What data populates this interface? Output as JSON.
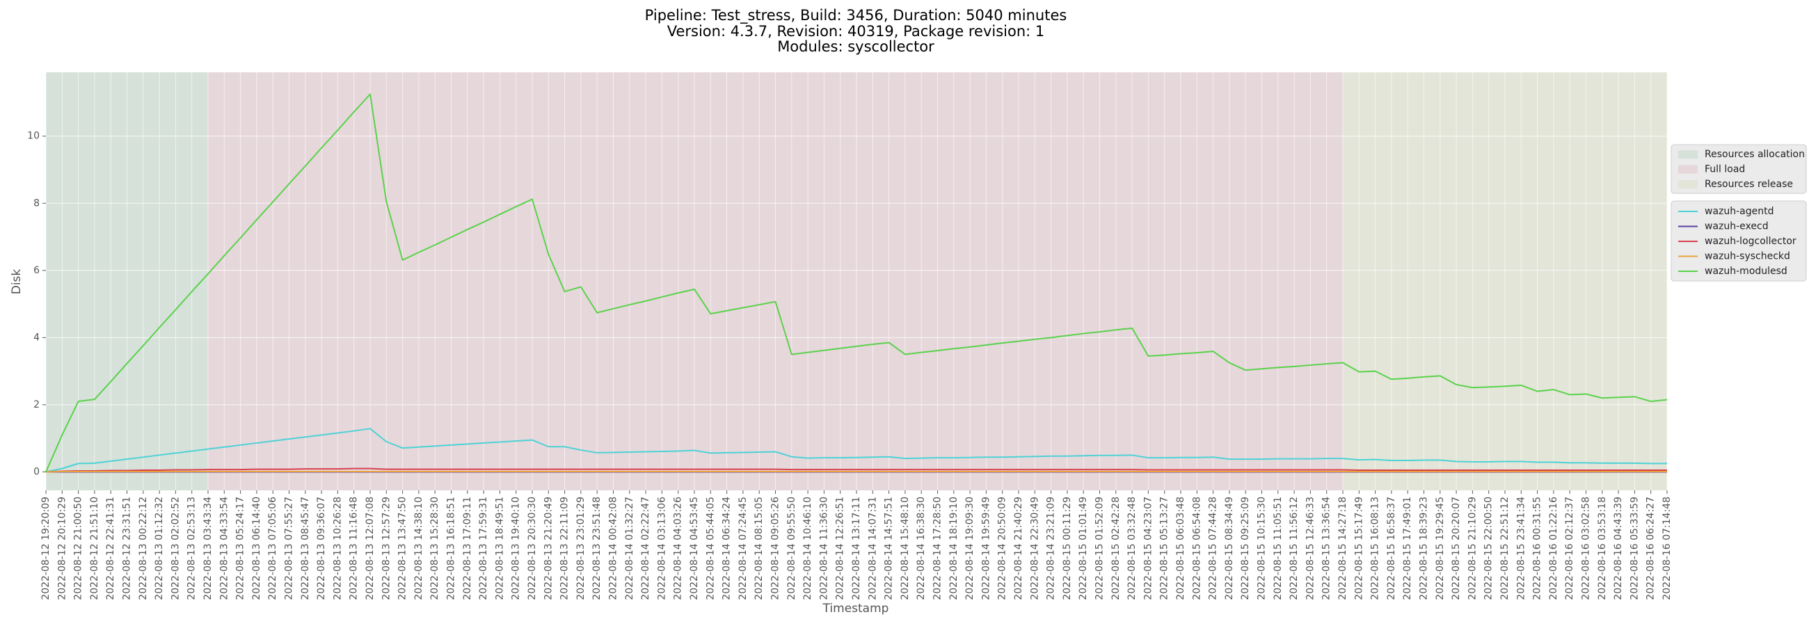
{
  "chart_data": {
    "type": "line",
    "title": [
      "Pipeline: Test_stress, Build: 3456, Duration: 5040 minutes",
      "Version: 4.3.7, Revision: 40319, Package revision: 1",
      "Modules: syscollector"
    ],
    "xlabel": "Timestamp",
    "ylabel": "Disk",
    "categories": [
      "2022-08-12 19:20:09",
      "2022-08-12 20:10:29",
      "2022-08-12 21:00:50",
      "2022-08-12 21:51:10",
      "2022-08-12 22:41:31",
      "2022-08-12 23:31:51",
      "2022-08-13 00:22:12",
      "2022-08-13 01:12:32",
      "2022-08-13 02:02:52",
      "2022-08-13 02:53:13",
      "2022-08-13 03:43:34",
      "2022-08-13 04:33:54",
      "2022-08-13 05:24:17",
      "2022-08-13 06:14:40",
      "2022-08-13 07:05:06",
      "2022-08-13 07:55:27",
      "2022-08-13 08:45:47",
      "2022-08-13 09:36:07",
      "2022-08-13 10:26:28",
      "2022-08-13 11:16:48",
      "2022-08-13 12:07:08",
      "2022-08-13 12:57:29",
      "2022-08-13 13:47:50",
      "2022-08-13 14:38:10",
      "2022-08-13 15:28:30",
      "2022-08-13 16:18:51",
      "2022-08-13 17:09:11",
      "2022-08-13 17:59:31",
      "2022-08-13 18:49:51",
      "2022-08-13 19:40:10",
      "2022-08-13 20:30:30",
      "2022-08-13 21:20:49",
      "2022-08-13 22:11:09",
      "2022-08-13 23:01:29",
      "2022-08-13 23:51:48",
      "2022-08-14 00:42:08",
      "2022-08-14 01:32:27",
      "2022-08-14 02:22:47",
      "2022-08-14 03:13:06",
      "2022-08-14 04:03:26",
      "2022-08-14 04:53:45",
      "2022-08-14 05:44:05",
      "2022-08-14 06:34:24",
      "2022-08-14 07:24:45",
      "2022-08-14 08:15:05",
      "2022-08-14 09:05:26",
      "2022-08-14 09:55:50",
      "2022-08-14 10:46:10",
      "2022-08-14 11:36:30",
      "2022-08-14 12:26:51",
      "2022-08-14 13:17:11",
      "2022-08-14 14:07:31",
      "2022-08-14 14:57:51",
      "2022-08-14 15:48:10",
      "2022-08-14 16:38:30",
      "2022-08-14 17:28:50",
      "2022-08-14 18:19:10",
      "2022-08-14 19:09:30",
      "2022-08-14 19:59:49",
      "2022-08-14 20:50:09",
      "2022-08-14 21:40:29",
      "2022-08-14 22:30:49",
      "2022-08-14 23:21:09",
      "2022-08-15 00:11:29",
      "2022-08-15 01:01:49",
      "2022-08-15 01:52:09",
      "2022-08-15 02:42:28",
      "2022-08-15 03:32:48",
      "2022-08-15 04:23:07",
      "2022-08-15 05:13:27",
      "2022-08-15 06:03:48",
      "2022-08-15 06:54:08",
      "2022-08-15 07:44:28",
      "2022-08-15 08:34:49",
      "2022-08-15 09:25:09",
      "2022-08-15 10:15:30",
      "2022-08-15 11:05:51",
      "2022-08-15 11:56:12",
      "2022-08-15 12:46:33",
      "2022-08-15 13:36:54",
      "2022-08-15 14:27:18",
      "2022-08-15 15:17:49",
      "2022-08-15 16:08:13",
      "2022-08-15 16:58:37",
      "2022-08-15 17:49:01",
      "2022-08-15 18:39:23",
      "2022-08-15 19:29:45",
      "2022-08-15 20:20:07",
      "2022-08-15 21:10:29",
      "2022-08-15 22:00:50",
      "2022-08-15 22:51:12",
      "2022-08-15 23:41:34",
      "2022-08-16 00:31:55",
      "2022-08-16 01:22:16",
      "2022-08-16 02:12:37",
      "2022-08-16 03:02:58",
      "2022-08-16 03:53:18",
      "2022-08-16 04:43:39",
      "2022-08-16 05:33:59",
      "2022-08-16 06:24:27",
      "2022-08-16 07:14:48"
    ],
    "phases": [
      {
        "name": "Resources allocation",
        "color": "#d6e1da",
        "span": [
          0,
          10
        ]
      },
      {
        "name": "Full load",
        "color": "#e6d7db",
        "span": [
          10,
          80
        ]
      },
      {
        "name": "Resources release",
        "color": "#e3e5d8",
        "span": [
          80,
          100
        ]
      }
    ],
    "series": [
      {
        "name": "wazuh-agentd",
        "color": "#4dd2d6",
        "values": [
          0,
          0.1,
          0.25,
          0.26,
          0.32,
          0.38,
          0.44,
          0.5,
          0.56,
          0.62,
          0.68,
          0.74,
          0.8,
          0.86,
          0.92,
          0.98,
          1.04,
          1.1,
          1.16,
          1.22,
          1.29,
          0.9,
          0.71,
          0.74,
          0.77,
          0.8,
          0.83,
          0.86,
          0.89,
          0.92,
          0.95,
          0.75,
          0.75,
          0.65,
          0.57,
          0.58,
          0.59,
          0.6,
          0.61,
          0.62,
          0.64,
          0.56,
          0.57,
          0.58,
          0.59,
          0.6,
          0.45,
          0.41,
          0.42,
          0.42,
          0.43,
          0.44,
          0.45,
          0.4,
          0.41,
          0.42,
          0.42,
          0.43,
          0.44,
          0.44,
          0.45,
          0.46,
          0.47,
          0.47,
          0.48,
          0.49,
          0.49,
          0.5,
          0.42,
          0.42,
          0.43,
          0.43,
          0.44,
          0.38,
          0.38,
          0.38,
          0.39,
          0.39,
          0.39,
          0.4,
          0.4,
          0.36,
          0.37,
          0.34,
          0.34,
          0.35,
          0.35,
          0.31,
          0.3,
          0.3,
          0.31,
          0.31,
          0.29,
          0.29,
          0.27,
          0.27,
          0.26,
          0.26,
          0.26,
          0.25,
          0.25
        ]
      },
      {
        "name": "wazuh-execd",
        "color": "#5a3ea6",
        "values": [
          0,
          0,
          0,
          0,
          0,
          0,
          0,
          0,
          0,
          0,
          0,
          0,
          0,
          0,
          0,
          0,
          0,
          0,
          0,
          0,
          0,
          0,
          0,
          0,
          0,
          0,
          0,
          0,
          0,
          0,
          0,
          0,
          0,
          0,
          0,
          0,
          0,
          0,
          0,
          0,
          0,
          0,
          0,
          0,
          0,
          0,
          0,
          0,
          0,
          0,
          0,
          0,
          0,
          0,
          0,
          0,
          0,
          0,
          0,
          0,
          0,
          0,
          0,
          0,
          0,
          0,
          0,
          0,
          0,
          0,
          0,
          0,
          0,
          0,
          0,
          0,
          0,
          0,
          0,
          0,
          0,
          0,
          0,
          0,
          0,
          0,
          0,
          0,
          0,
          0,
          0,
          0,
          0,
          0,
          0,
          0,
          0,
          0,
          0,
          0,
          0
        ]
      },
      {
        "name": "wazuh-logcollector",
        "color": "#d8404e",
        "values": [
          0,
          0.02,
          0.03,
          0.03,
          0.04,
          0.04,
          0.05,
          0.05,
          0.06,
          0.06,
          0.07,
          0.07,
          0.07,
          0.08,
          0.08,
          0.08,
          0.09,
          0.09,
          0.09,
          0.1,
          0.1,
          0.08,
          0.08,
          0.08,
          0.08,
          0.08,
          0.08,
          0.08,
          0.08,
          0.08,
          0.08,
          0.08,
          0.08,
          0.08,
          0.08,
          0.08,
          0.08,
          0.08,
          0.08,
          0.08,
          0.08,
          0.08,
          0.08,
          0.08,
          0.08,
          0.08,
          0.07,
          0.07,
          0.07,
          0.07,
          0.07,
          0.07,
          0.07,
          0.07,
          0.07,
          0.07,
          0.07,
          0.07,
          0.07,
          0.07,
          0.07,
          0.07,
          0.07,
          0.07,
          0.07,
          0.07,
          0.07,
          0.07,
          0.06,
          0.06,
          0.06,
          0.06,
          0.06,
          0.06,
          0.06,
          0.06,
          0.06,
          0.06,
          0.06,
          0.06,
          0.06,
          0.05,
          0.05,
          0.05,
          0.05,
          0.05,
          0.05,
          0.05,
          0.05,
          0.05,
          0.05,
          0.05,
          0.05,
          0.05,
          0.05,
          0.05,
          0.05,
          0.05,
          0.05,
          0.05,
          0.05
        ]
      },
      {
        "name": "wazuh-syscheckd",
        "color": "#e9a13b",
        "values": [
          0,
          0.01,
          0.01,
          0.01,
          0.01,
          0.01,
          0.01,
          0.01,
          0.01,
          0.01,
          0.01,
          0.01,
          0.01,
          0.01,
          0.01,
          0.01,
          0.01,
          0.01,
          0.01,
          0.01,
          0.01,
          0.01,
          0.01,
          0.01,
          0.01,
          0.01,
          0.01,
          0.01,
          0.01,
          0.01,
          0.01,
          0.01,
          0.01,
          0.01,
          0.01,
          0.01,
          0.01,
          0.01,
          0.01,
          0.01,
          0.01,
          0.01,
          0.01,
          0.01,
          0.01,
          0.01,
          0.01,
          0.01,
          0.01,
          0.01,
          0.01,
          0.01,
          0.01,
          0.01,
          0.01,
          0.01,
          0.01,
          0.01,
          0.01,
          0.01,
          0.01,
          0.01,
          0.01,
          0.01,
          0.01,
          0.01,
          0.01,
          0.01,
          0.01,
          0.01,
          0.01,
          0.01,
          0.01,
          0.01,
          0.01,
          0.01,
          0.01,
          0.01,
          0.01,
          0.01,
          0.01,
          0.01,
          0.01,
          0.01,
          0.01,
          0.01,
          0.01,
          0.01,
          0.01,
          0.01,
          0.01,
          0.01,
          0.01,
          0.01,
          0.01,
          0.01,
          0.01,
          0.01,
          0.01,
          0.01,
          0.01
        ]
      },
      {
        "name": "wazuh-modulesd",
        "color": "#5ad24a",
        "values": [
          0,
          1.1,
          2.1,
          2.16,
          2.69,
          3.23,
          3.76,
          4.3,
          4.83,
          5.37,
          5.9,
          6.44,
          6.97,
          7.51,
          8.04,
          8.58,
          9.11,
          9.65,
          10.18,
          10.72,
          11.25,
          8.05,
          6.31,
          6.54,
          6.76,
          6.99,
          7.22,
          7.44,
          7.67,
          7.9,
          8.12,
          6.48,
          5.37,
          5.51,
          4.74,
          4.86,
          4.98,
          5.09,
          5.21,
          5.33,
          5.44,
          4.71,
          4.8,
          4.89,
          4.98,
          5.07,
          3.5,
          3.56,
          3.62,
          3.68,
          3.74,
          3.8,
          3.85,
          3.5,
          3.56,
          3.61,
          3.67,
          3.72,
          3.78,
          3.84,
          3.89,
          3.95,
          4.0,
          4.06,
          4.12,
          4.17,
          4.23,
          4.28,
          3.45,
          3.48,
          3.52,
          3.55,
          3.59,
          3.25,
          3.03,
          3.07,
          3.11,
          3.14,
          3.18,
          3.22,
          3.25,
          2.98,
          3.0,
          2.76,
          2.79,
          2.83,
          2.86,
          2.6,
          2.51,
          2.53,
          2.55,
          2.58,
          2.4,
          2.45,
          2.3,
          2.32,
          2.2,
          2.22,
          2.24,
          2.1,
          2.15
        ]
      }
    ],
    "ylim": [
      -0.55,
      11.9
    ],
    "yticks": [
      0,
      2,
      4,
      6,
      8,
      10
    ],
    "grid": true
  }
}
